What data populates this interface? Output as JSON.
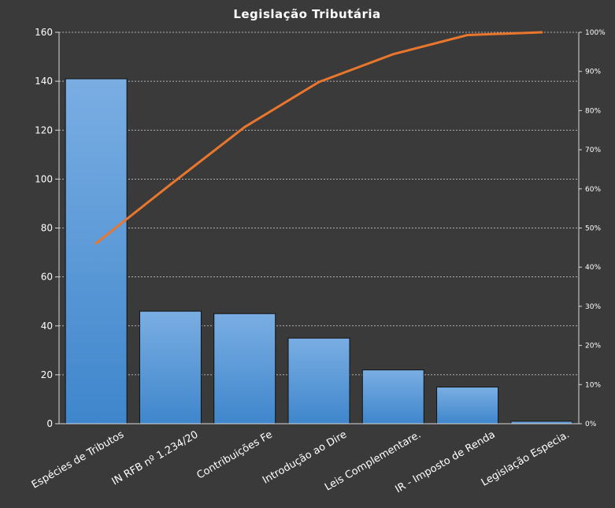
{
  "chart_data": {
    "type": "pareto",
    "title": "Legislação Tributária",
    "categories": [
      "Espécies de Tributos",
      "IN RFB nº 1.234/20",
      "Contribuições Fe",
      "Introdução  ao Dire",
      "Leis Complementare.",
      "IR - Imposto de Renda",
      "Legislação Especia."
    ],
    "series": [
      {
        "type": "bar",
        "values": [
          141,
          46,
          45,
          35,
          22,
          15,
          1
        ]
      },
      {
        "type": "line",
        "axis": "secondary",
        "values": [
          46.1,
          61.1,
          75.8,
          87.3,
          94.4,
          99.3,
          100
        ]
      }
    ],
    "y_axis": {
      "ylim": [
        0,
        160
      ],
      "ticks": [
        "0",
        "20",
        "40",
        "60",
        "80",
        "100",
        "120",
        "140",
        "160"
      ]
    },
    "y2_axis": {
      "ylim": [
        0,
        100
      ],
      "ticks": [
        "0%",
        "10%",
        "20%",
        "30%",
        "40%",
        "50%",
        "60%",
        "70%",
        "80%",
        "90%",
        "100%"
      ]
    },
    "grid": true,
    "legend": "none",
    "colors": {
      "background": "#3a3a3a",
      "bar_top": "#7aaee3",
      "bar_bottom": "#3f86cc",
      "line": "#e8762d",
      "text": "#ffffff",
      "grid": "#d8d8d8"
    }
  }
}
